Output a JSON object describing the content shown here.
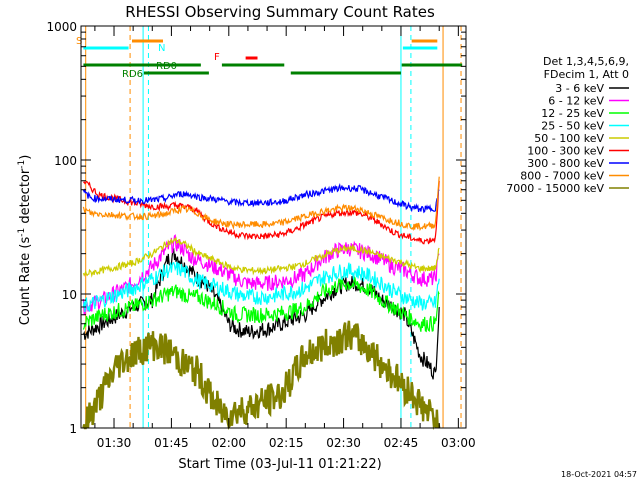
{
  "chart_data": {
    "type": "line",
    "title": "RHESSI Observing Summary Count Rates",
    "xlabel": "Start Time (03-Jul-11 01:21:22)",
    "ylabel_main": "Count Rate (s",
    "ylabel_sup1": "-1",
    "ylabel_mid": " detector",
    "ylabel_sup2": "-1",
    "ylabel_end": ")",
    "yscale": "log",
    "ylim": [
      1,
      1000
    ],
    "y_ticks": [
      "1",
      "10",
      "100",
      "1000"
    ],
    "x_range_minutes": [
      81.37,
      182
    ],
    "x_ticks": [
      {
        "minute": 90,
        "label": "01:30"
      },
      {
        "minute": 105,
        "label": "01:45"
      },
      {
        "minute": 120,
        "label": "02:00"
      },
      {
        "minute": 135,
        "label": "02:15"
      },
      {
        "minute": 150,
        "label": "02:30"
      },
      {
        "minute": 165,
        "label": "02:45"
      },
      {
        "minute": 180,
        "label": "03:00"
      }
    ],
    "detector_info": [
      "Det 1,3,4,5,6,9,",
      "FDecim 1, Att 0"
    ],
    "series": [
      {
        "name": "3 - 6 keV",
        "color": "#000000",
        "points": [
          [
            82,
            5
          ],
          [
            87,
            6
          ],
          [
            95,
            8
          ],
          [
            100,
            9
          ],
          [
            104,
            18
          ],
          [
            106,
            20
          ],
          [
            108,
            17
          ],
          [
            110,
            15
          ],
          [
            112,
            13
          ],
          [
            114,
            12
          ],
          [
            116,
            10
          ],
          [
            118,
            8
          ],
          [
            120,
            6
          ],
          [
            122,
            5.5
          ],
          [
            125,
            5.2
          ],
          [
            130,
            5.5
          ],
          [
            134,
            6
          ],
          [
            137,
            6.5
          ],
          [
            140,
            7
          ],
          [
            144,
            9
          ],
          [
            148,
            11
          ],
          [
            151,
            12
          ],
          [
            154,
            12
          ],
          [
            157,
            11
          ],
          [
            160,
            9
          ],
          [
            163,
            8
          ],
          [
            166,
            7
          ],
          [
            168,
            5
          ],
          [
            170,
            3.5
          ],
          [
            172,
            3
          ],
          [
            174,
            2.5
          ],
          [
            175,
            8
          ]
        ]
      },
      {
        "name": "6 - 12 keV",
        "color": "#ff00ff",
        "points": [
          [
            82,
            8
          ],
          [
            87,
            9
          ],
          [
            95,
            12
          ],
          [
            100,
            16
          ],
          [
            104,
            22
          ],
          [
            106,
            24
          ],
          [
            108,
            22
          ],
          [
            110,
            19
          ],
          [
            112,
            18
          ],
          [
            114,
            17
          ],
          [
            116,
            16
          ],
          [
            118,
            15
          ],
          [
            120,
            14
          ],
          [
            122,
            13
          ],
          [
            125,
            12
          ],
          [
            130,
            12
          ],
          [
            134,
            12.5
          ],
          [
            137,
            13
          ],
          [
            140,
            14
          ],
          [
            144,
            18
          ],
          [
            148,
            21
          ],
          [
            151,
            22
          ],
          [
            154,
            21
          ],
          [
            157,
            20
          ],
          [
            160,
            18
          ],
          [
            163,
            16
          ],
          [
            166,
            15
          ],
          [
            168,
            14
          ],
          [
            170,
            13
          ],
          [
            172,
            13
          ],
          [
            174,
            13
          ],
          [
            175,
            20
          ]
        ]
      },
      {
        "name": "12 - 25 keV",
        "color": "#00ff00",
        "points": [
          [
            82,
            6
          ],
          [
            87,
            7
          ],
          [
            95,
            8
          ],
          [
            100,
            9
          ],
          [
            104,
            10
          ],
          [
            106,
            10.5
          ],
          [
            108,
            10
          ],
          [
            110,
            9.5
          ],
          [
            112,
            9.5
          ],
          [
            114,
            9
          ],
          [
            116,
            8.5
          ],
          [
            118,
            8
          ],
          [
            120,
            7.5
          ],
          [
            122,
            7
          ],
          [
            125,
            7
          ],
          [
            130,
            7
          ],
          [
            134,
            7.2
          ],
          [
            137,
            7.5
          ],
          [
            140,
            8
          ],
          [
            144,
            10
          ],
          [
            148,
            11.5
          ],
          [
            151,
            12
          ],
          [
            154,
            11.5
          ],
          [
            157,
            10.5
          ],
          [
            160,
            9
          ],
          [
            163,
            8
          ],
          [
            166,
            7
          ],
          [
            168,
            6.5
          ],
          [
            170,
            6
          ],
          [
            172,
            6
          ],
          [
            174,
            6
          ],
          [
            175,
            10
          ]
        ]
      },
      {
        "name": "25 - 50 keV",
        "color": "#00ffff",
        "points": [
          [
            82,
            8
          ],
          [
            87,
            9
          ],
          [
            95,
            11
          ],
          [
            100,
            13
          ],
          [
            104,
            15
          ],
          [
            106,
            15.5
          ],
          [
            108,
            15
          ],
          [
            110,
            13.5
          ],
          [
            112,
            12.5
          ],
          [
            114,
            12
          ],
          [
            116,
            11.5
          ],
          [
            118,
            11
          ],
          [
            120,
            10.5
          ],
          [
            122,
            10
          ],
          [
            125,
            9.5
          ],
          [
            130,
            9.5
          ],
          [
            134,
            10
          ],
          [
            137,
            10.5
          ],
          [
            140,
            11
          ],
          [
            144,
            13
          ],
          [
            148,
            14.5
          ],
          [
            151,
            15
          ],
          [
            154,
            14.5
          ],
          [
            157,
            13.5
          ],
          [
            160,
            12
          ],
          [
            163,
            10.5
          ],
          [
            166,
            9.5
          ],
          [
            168,
            9
          ],
          [
            170,
            8.5
          ],
          [
            172,
            8.5
          ],
          [
            174,
            8.5
          ],
          [
            175,
            13
          ]
        ]
      },
      {
        "name": "50 - 100 keV",
        "color": "#cccc00",
        "points": [
          [
            82,
            14
          ],
          [
            87,
            15
          ],
          [
            95,
            17
          ],
          [
            100,
            20
          ],
          [
            104,
            24
          ],
          [
            106,
            25
          ],
          [
            108,
            24
          ],
          [
            110,
            22
          ],
          [
            112,
            20
          ],
          [
            114,
            19
          ],
          [
            116,
            18
          ],
          [
            118,
            17
          ],
          [
            120,
            16
          ],
          [
            122,
            15.5
          ],
          [
            125,
            15
          ],
          [
            130,
            15
          ],
          [
            134,
            15.5
          ],
          [
            137,
            16
          ],
          [
            140,
            17
          ],
          [
            144,
            19
          ],
          [
            148,
            21
          ],
          [
            151,
            22
          ],
          [
            154,
            21.5
          ],
          [
            157,
            20.5
          ],
          [
            160,
            19
          ],
          [
            163,
            18
          ],
          [
            166,
            17
          ],
          [
            168,
            16
          ],
          [
            170,
            15.5
          ],
          [
            172,
            15.5
          ],
          [
            174,
            15.5
          ],
          [
            175,
            22
          ]
        ]
      },
      {
        "name": "100 - 300 keV",
        "color": "#ff0000",
        "points": [
          [
            82,
            70
          ],
          [
            84,
            62
          ],
          [
            86,
            55
          ],
          [
            95,
            48
          ],
          [
            100,
            45
          ],
          [
            104,
            45
          ],
          [
            106,
            46
          ],
          [
            108,
            45
          ],
          [
            110,
            44
          ],
          [
            112,
            41
          ],
          [
            114,
            36
          ],
          [
            116,
            33
          ],
          [
            118,
            31
          ],
          [
            120,
            29
          ],
          [
            122,
            28
          ],
          [
            125,
            27
          ],
          [
            130,
            27
          ],
          [
            134,
            28
          ],
          [
            137,
            30
          ],
          [
            140,
            33
          ],
          [
            144,
            37
          ],
          [
            148,
            40
          ],
          [
            151,
            41
          ],
          [
            154,
            40
          ],
          [
            157,
            37
          ],
          [
            160,
            33
          ],
          [
            163,
            29
          ],
          [
            166,
            27
          ],
          [
            168,
            26
          ],
          [
            170,
            25
          ],
          [
            172,
            25
          ],
          [
            174,
            26
          ],
          [
            175,
            70
          ]
        ]
      },
      {
        "name": "300 - 800 keV",
        "color": "#0000ff",
        "points": [
          [
            82,
            58
          ],
          [
            84,
            52
          ],
          [
            95,
            50
          ],
          [
            100,
            50
          ],
          [
            104,
            52
          ],
          [
            106,
            55
          ],
          [
            108,
            56
          ],
          [
            110,
            55
          ],
          [
            112,
            53
          ],
          [
            114,
            52
          ],
          [
            116,
            51
          ],
          [
            118,
            50
          ],
          [
            120,
            49
          ],
          [
            122,
            48
          ],
          [
            125,
            48
          ],
          [
            130,
            48
          ],
          [
            134,
            49
          ],
          [
            137,
            52
          ],
          [
            140,
            55
          ],
          [
            144,
            58
          ],
          [
            148,
            61
          ],
          [
            151,
            62
          ],
          [
            154,
            61
          ],
          [
            157,
            57
          ],
          [
            160,
            53
          ],
          [
            163,
            49
          ],
          [
            166,
            46
          ],
          [
            168,
            44
          ],
          [
            170,
            43
          ],
          [
            172,
            43
          ],
          [
            174,
            44
          ],
          [
            175,
            60
          ]
        ]
      },
      {
        "name": "800 - 7000 keV",
        "color": "#ff8c00",
        "points": [
          [
            82,
            43
          ],
          [
            84,
            40
          ],
          [
            95,
            38
          ],
          [
            100,
            38
          ],
          [
            104,
            40
          ],
          [
            106,
            42
          ],
          [
            108,
            43
          ],
          [
            110,
            42
          ],
          [
            112,
            40
          ],
          [
            114,
            37
          ],
          [
            116,
            35
          ],
          [
            118,
            34
          ],
          [
            120,
            33
          ],
          [
            122,
            33
          ],
          [
            125,
            33
          ],
          [
            130,
            33
          ],
          [
            134,
            34
          ],
          [
            137,
            36
          ],
          [
            140,
            38
          ],
          [
            144,
            41
          ],
          [
            148,
            43
          ],
          [
            151,
            44
          ],
          [
            154,
            43
          ],
          [
            157,
            40
          ],
          [
            160,
            37
          ],
          [
            163,
            35
          ],
          [
            166,
            33
          ],
          [
            168,
            32
          ],
          [
            170,
            32
          ],
          [
            172,
            32
          ],
          [
            174,
            33
          ],
          [
            175,
            75
          ]
        ]
      },
      {
        "name": "7000 - 15000 keV",
        "color": "#808000",
        "points": [
          [
            82,
            1
          ],
          [
            91,
            3
          ],
          [
            95,
            3.6
          ],
          [
            100,
            4.2
          ],
          [
            104,
            3.8
          ],
          [
            106,
            3.5
          ],
          [
            108,
            3.0
          ],
          [
            110,
            2.8
          ],
          [
            112,
            2.6
          ],
          [
            114,
            2.0
          ],
          [
            116,
            1.6
          ],
          [
            118,
            1.3
          ],
          [
            120,
            1.3
          ],
          [
            125,
            1.4
          ],
          [
            130,
            1.6
          ],
          [
            134,
            1.8
          ],
          [
            137,
            2.5
          ],
          [
            140,
            3.5
          ],
          [
            144,
            4.0
          ],
          [
            148,
            4.5
          ],
          [
            151,
            5.0
          ],
          [
            154,
            4.5
          ],
          [
            157,
            3.8
          ],
          [
            160,
            3.0
          ],
          [
            163,
            2.5
          ],
          [
            166,
            2.0
          ],
          [
            168,
            1.8
          ],
          [
            170,
            1.5
          ],
          [
            172,
            1.3
          ],
          [
            174,
            1.2
          ],
          [
            175,
            1
          ]
        ]
      }
    ],
    "state_bars": [
      {
        "label": "S",
        "color": "#ff8c00"
      },
      {
        "label": "N",
        "color": "#00ffff"
      },
      {
        "label": "RD0",
        "color": "#008000"
      },
      {
        "label": "RD6",
        "color": "#008000"
      },
      {
        "label": "F",
        "color": "#ff0000"
      }
    ],
    "vertical_markers": [
      {
        "minute": 82.6,
        "color": "#ff8c00",
        "style": "solid"
      },
      {
        "minute": 94.2,
        "color": "#ff8c00",
        "style": "dashed"
      },
      {
        "minute": 97.6,
        "color": "#00ffff",
        "style": "solid"
      },
      {
        "minute": 99.0,
        "color": "#00ffff",
        "style": "dashed"
      },
      {
        "minute": 165.0,
        "color": "#00ffff",
        "style": "solid"
      },
      {
        "minute": 167.6,
        "color": "#00ffff",
        "style": "dashed"
      },
      {
        "minute": 176.0,
        "color": "#ff8c00",
        "style": "solid"
      },
      {
        "minute": 180.7,
        "color": "#ff8c00",
        "style": "dashed"
      }
    ],
    "timestamp": "18-Oct-2021 04:57"
  }
}
